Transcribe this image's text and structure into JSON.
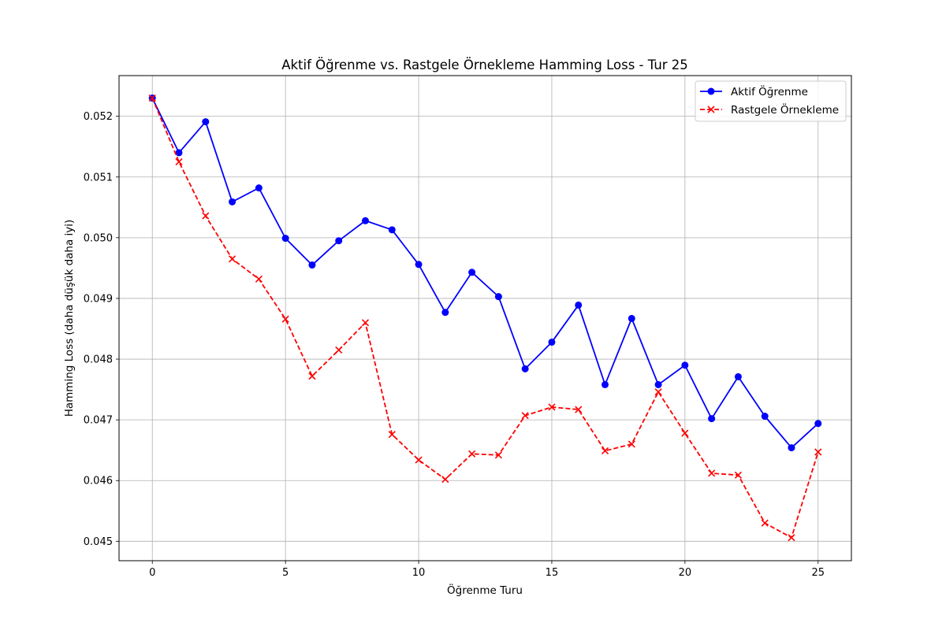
{
  "chart_data": {
    "type": "line",
    "title": "Aktif Öğrenme vs. Rastgele Örnekleme Hamming Loss - Tur 25",
    "xlabel": "Öğrenme Turu",
    "ylabel": "Hamming Loss (daha düşük daha iyi)",
    "xlim": [
      -1.25,
      26.25
    ],
    "ylim": [
      0.04468,
      0.05267
    ],
    "xticks": [
      0,
      5,
      10,
      15,
      20,
      25
    ],
    "xtick_labels": [
      "0",
      "5",
      "10",
      "15",
      "20",
      "25"
    ],
    "yticks": [
      0.045,
      0.046,
      0.047,
      0.048,
      0.049,
      0.05,
      0.051,
      0.052
    ],
    "ytick_labels": [
      "0.045",
      "0.046",
      "0.047",
      "0.048",
      "0.049",
      "0.050",
      "0.051",
      "0.052"
    ],
    "grid": true,
    "legend_position": "top-right",
    "x": [
      0,
      1,
      2,
      3,
      4,
      5,
      6,
      7,
      8,
      9,
      10,
      11,
      12,
      13,
      14,
      15,
      16,
      17,
      18,
      19,
      20,
      21,
      22,
      23,
      24,
      25
    ],
    "series": [
      {
        "name": "Aktif Öğrenme",
        "color": "#0000ff",
        "line_style": "solid",
        "marker": "circle",
        "values": [
          0.0523,
          0.0514,
          0.05191,
          0.05059,
          0.05082,
          0.04999,
          0.04955,
          0.04995,
          0.05028,
          0.05013,
          0.04956,
          0.04877,
          0.04943,
          0.04903,
          0.04784,
          0.04828,
          0.04889,
          0.04758,
          0.04867,
          0.04758,
          0.0479,
          0.04702,
          0.04771,
          0.04706,
          0.04654,
          0.04694
        ]
      },
      {
        "name": "Rastgele Örnekleme",
        "color": "#ff0000",
        "line_style": "dashed",
        "marker": "x",
        "values": [
          0.0523,
          0.05125,
          0.05036,
          0.04965,
          0.04932,
          0.04866,
          0.04772,
          0.04815,
          0.0486,
          0.04676,
          0.04634,
          0.04602,
          0.04644,
          0.04642,
          0.04707,
          0.04721,
          0.04717,
          0.04649,
          0.0466,
          0.04746,
          0.04678,
          0.04612,
          0.04609,
          0.0453,
          0.04506,
          0.04647
        ]
      }
    ]
  }
}
